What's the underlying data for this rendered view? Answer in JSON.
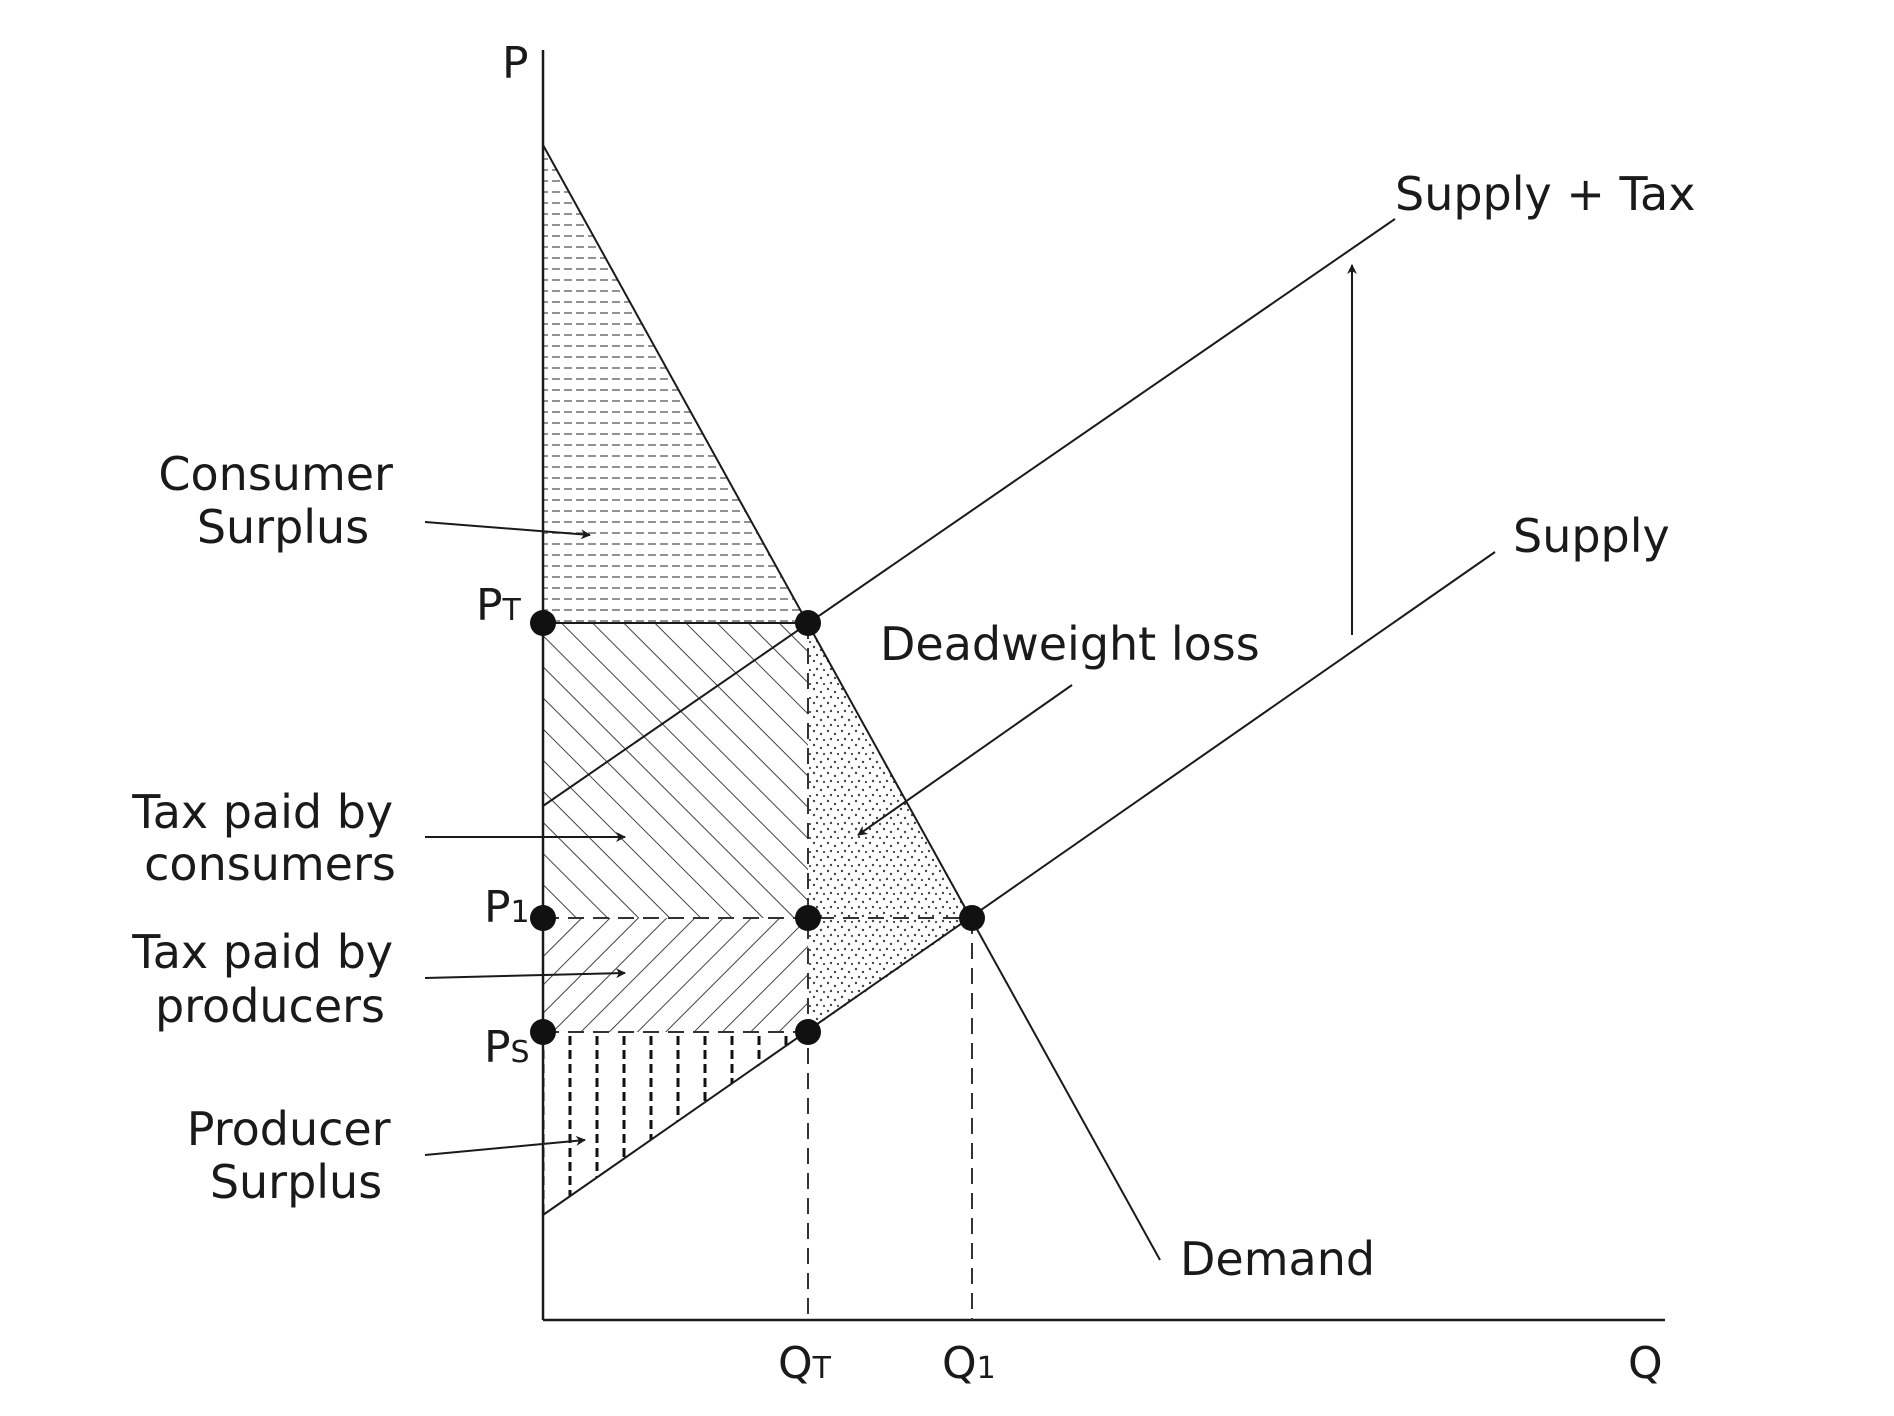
{
  "diagram": {
    "axes": {
      "y_label": "P",
      "x_label": "Q"
    },
    "price_labels": {
      "pt": {
        "main": "P",
        "sub": "T"
      },
      "p1": {
        "main": "P",
        "sub": "1"
      },
      "ps": {
        "main": "P",
        "sub": "S"
      }
    },
    "quantity_labels": {
      "qt": {
        "main": "Q",
        "sub": "T"
      },
      "q1": {
        "main": "Q",
        "sub": "1"
      }
    },
    "curve_labels": {
      "supply_tax": "Supply + Tax",
      "supply": "Supply",
      "demand": "Demand"
    },
    "area_labels": {
      "consumer_surplus": [
        "Consumer",
        "Surplus"
      ],
      "deadweight_loss": "Deadweight loss",
      "tax_consumers": [
        "Tax paid by",
        "consumers"
      ],
      "tax_producers": [
        "Tax paid by",
        "producers"
      ],
      "producer_surplus": [
        "Producer",
        "Surplus"
      ]
    },
    "colors": {
      "ink": "#1a1a1a",
      "hatch": "#555555",
      "background": "#ffffff"
    }
  }
}
